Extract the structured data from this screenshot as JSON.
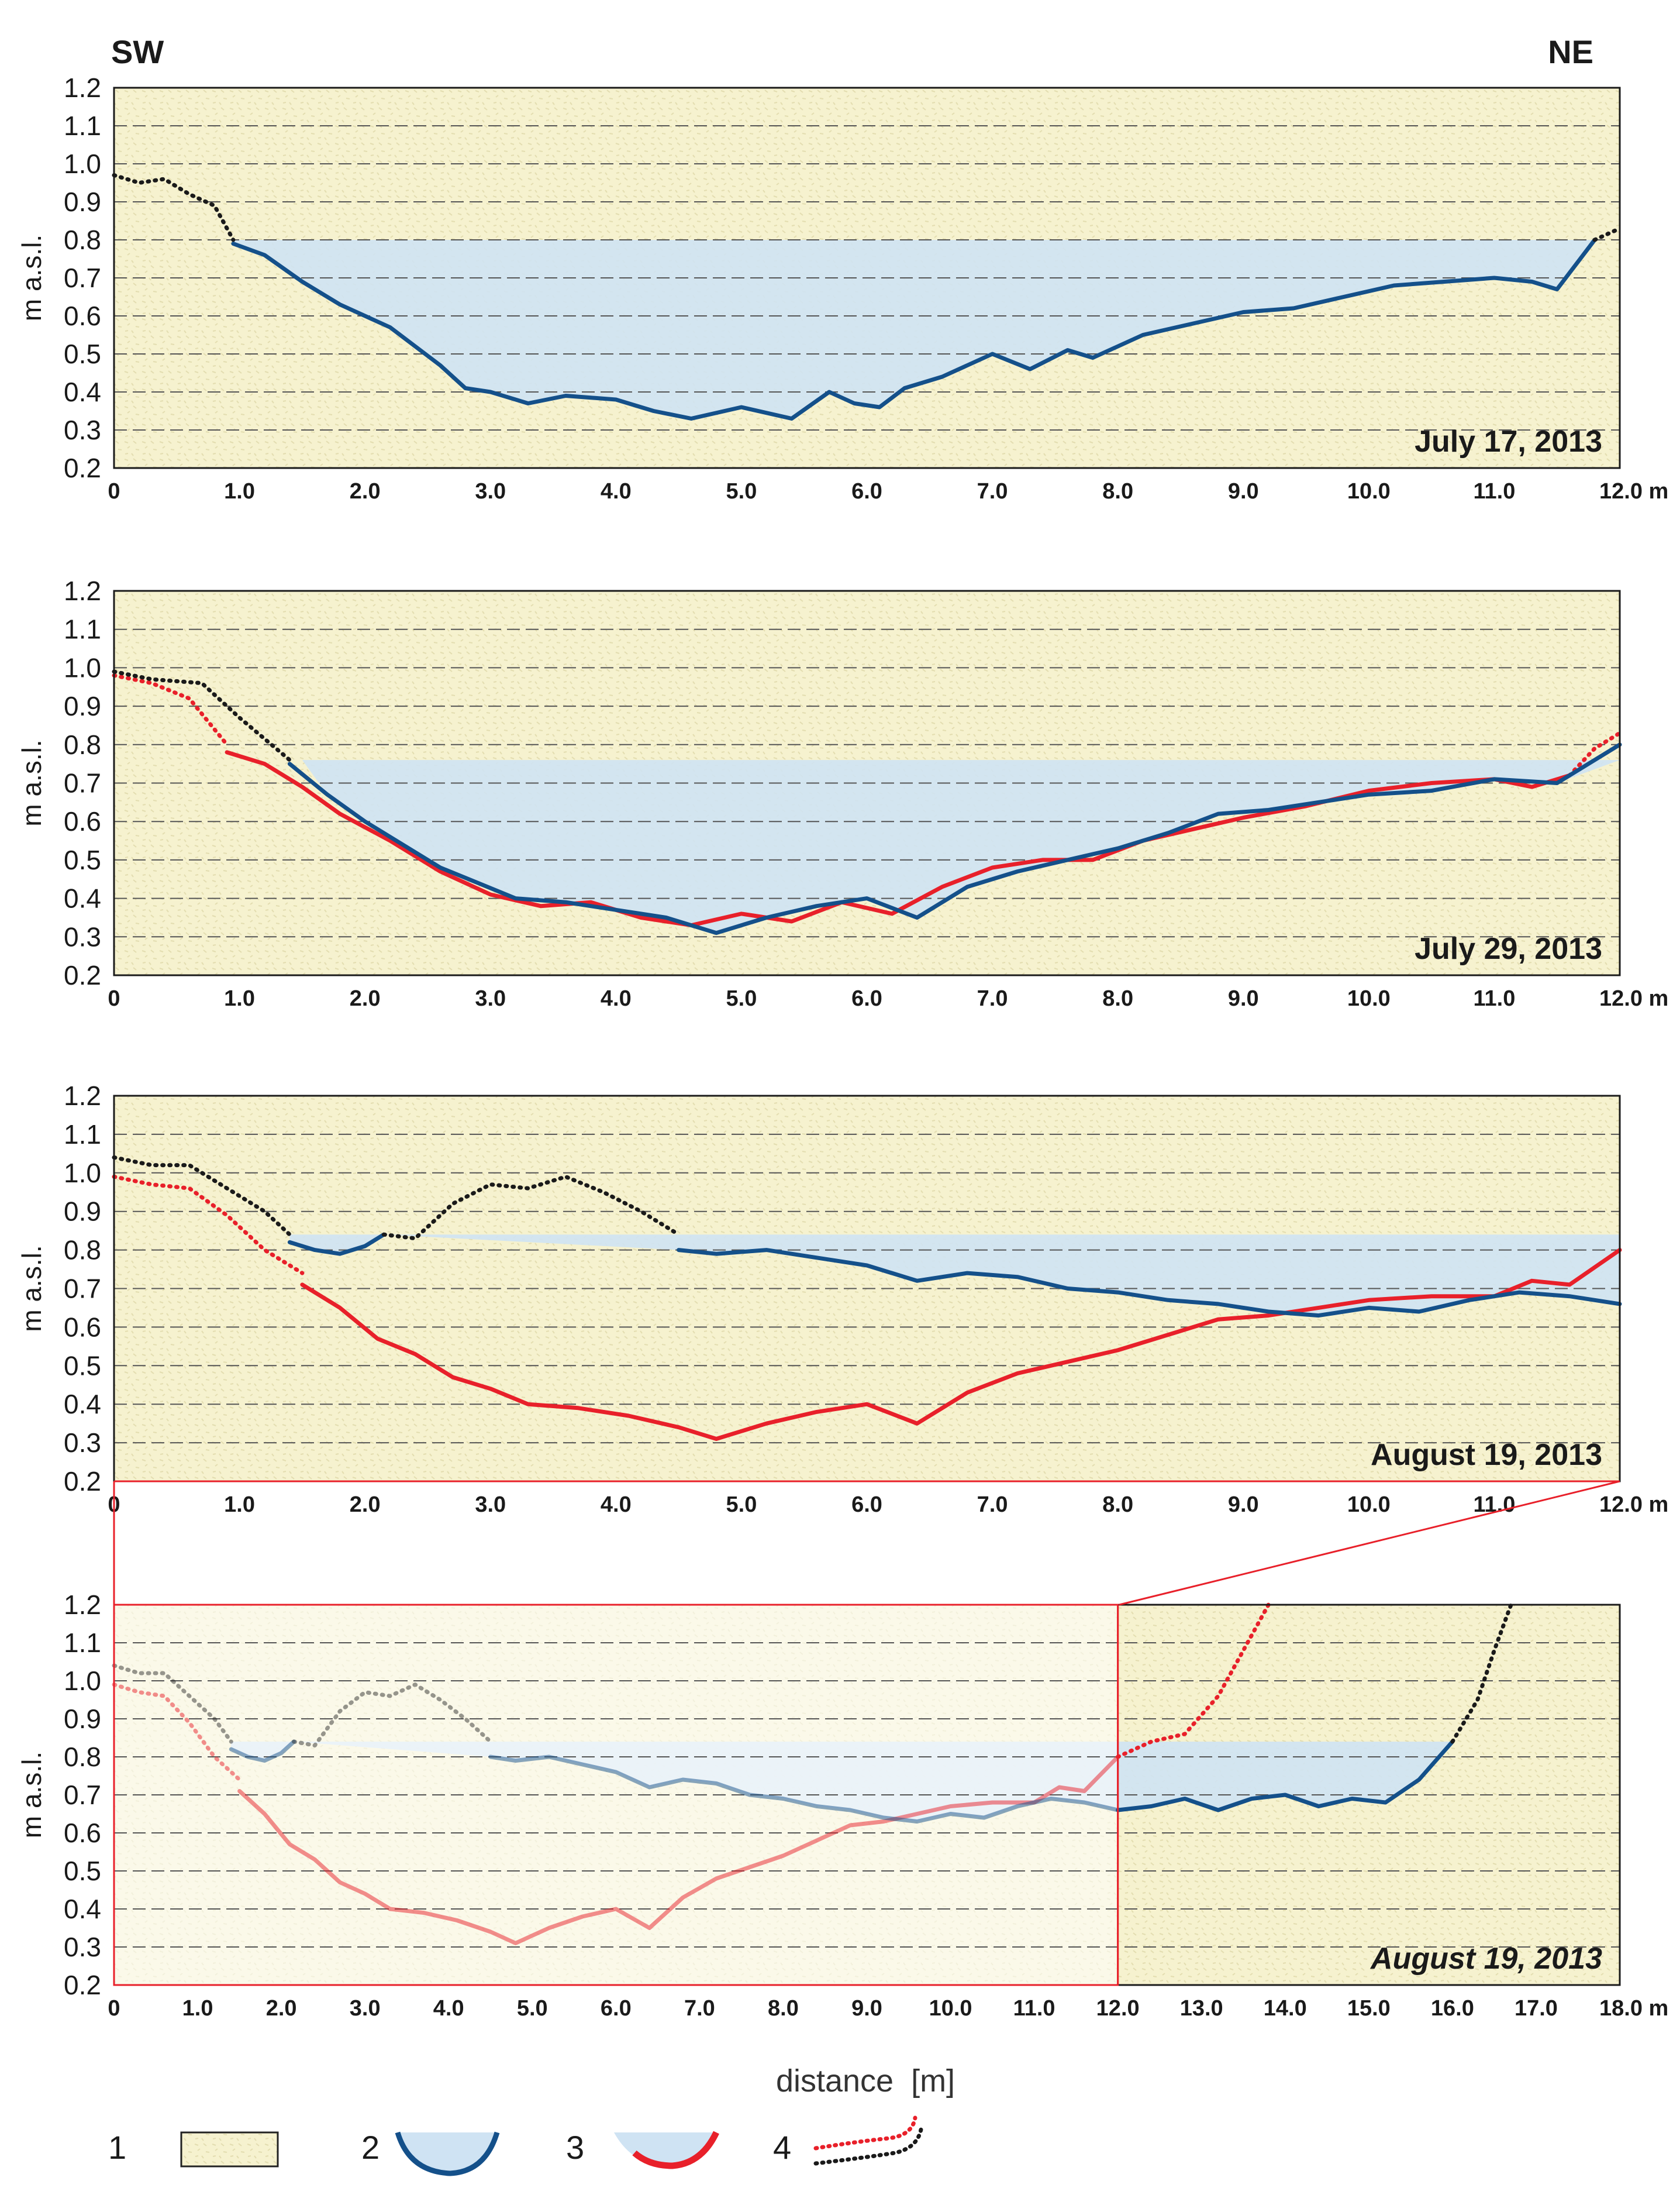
{
  "labels": {
    "left_direction": "SW",
    "right_direction": "NE",
    "xlabel": "distance  [m]"
  },
  "colors": {
    "ground": "#f6f2cf",
    "water": "#cfe3f3",
    "profile_blue": "#14508a",
    "profile_red": "#e8202a",
    "dotted_black": "#1a1a1a",
    "grid": "#555555",
    "zoom_frame": "#e8202a"
  },
  "legend": [
    {
      "num": "1",
      "icon": "ground-swatch"
    },
    {
      "num": "2",
      "icon": "blue-channel-profile"
    },
    {
      "num": "3",
      "icon": "red-channel-profile"
    },
    {
      "num": "4",
      "icon": "dotted-profile-lines"
    }
  ],
  "chart_data": [
    {
      "type": "line",
      "title": "July 17, 2013",
      "ylabel": "m a.s.l.",
      "xlim": [
        0,
        12
      ],
      "ylim": [
        0.2,
        1.2
      ],
      "xticks": [
        "0",
        "1.0",
        "2.0",
        "3.0",
        "4.0",
        "5.0",
        "6.0",
        "7.0",
        "8.0",
        "9.0",
        "10.0",
        "11.0",
        "12.0 m"
      ],
      "yticks": [
        "0.2",
        "0.3",
        "0.4",
        "0.5",
        "0.6",
        "0.7",
        "0.8",
        "0.9",
        "1.0",
        "1.1",
        "1.2"
      ],
      "water_level": 0.8,
      "water_range": [
        0.95,
        11.8
      ],
      "series": [
        {
          "name": "bank (dotted)",
          "style": "dotted-black",
          "x": [
            0,
            0.2,
            0.4,
            0.6,
            0.8,
            0.95
          ],
          "y": [
            0.97,
            0.95,
            0.96,
            0.92,
            0.89,
            0.8
          ]
        },
        {
          "name": "profile",
          "style": "blue",
          "x": [
            0.95,
            1.2,
            1.5,
            1.8,
            2.2,
            2.6,
            2.8,
            3.0,
            3.3,
            3.6,
            4.0,
            4.3,
            4.6,
            5.0,
            5.4,
            5.7,
            5.9,
            6.1,
            6.3,
            6.6,
            7.0,
            7.3,
            7.6,
            7.8,
            8.2,
            8.6,
            9.0,
            9.4,
            9.8,
            10.2,
            10.6,
            11.0,
            11.3,
            11.5,
            11.8
          ],
          "y": [
            0.79,
            0.76,
            0.69,
            0.63,
            0.57,
            0.47,
            0.41,
            0.4,
            0.37,
            0.39,
            0.38,
            0.35,
            0.33,
            0.36,
            0.33,
            0.4,
            0.37,
            0.36,
            0.41,
            0.44,
            0.5,
            0.46,
            0.51,
            0.49,
            0.55,
            0.58,
            0.61,
            0.62,
            0.65,
            0.68,
            0.69,
            0.7,
            0.69,
            0.67,
            0.8
          ]
        },
        {
          "name": "bank (dotted)",
          "style": "dotted-black",
          "x": [
            11.8,
            12.0
          ],
          "y": [
            0.8,
            0.83
          ]
        }
      ]
    },
    {
      "type": "line",
      "title": "July 29, 2013",
      "ylabel": "m a.s.l.",
      "xlim": [
        0,
        12
      ],
      "ylim": [
        0.2,
        1.2
      ],
      "xticks": [
        "0",
        "1.0",
        "2.0",
        "3.0",
        "4.0",
        "5.0",
        "6.0",
        "7.0",
        "8.0",
        "9.0",
        "10.0",
        "11.0",
        "12.0 m"
      ],
      "yticks": [
        "0.2",
        "0.3",
        "0.4",
        "0.5",
        "0.6",
        "0.7",
        "0.8",
        "0.9",
        "1.0",
        "1.1",
        "1.2"
      ],
      "water_level": 0.76,
      "water_range": [
        1.5,
        12.0
      ],
      "series": [
        {
          "name": "red bank (dotted)",
          "style": "dotted-red",
          "x": [
            0,
            0.3,
            0.6,
            0.9
          ],
          "y": [
            0.98,
            0.96,
            0.92,
            0.8
          ]
        },
        {
          "name": "July 17 profile",
          "style": "red",
          "x": [
            0.9,
            1.2,
            1.5,
            1.8,
            2.2,
            2.6,
            3.0,
            3.4,
            3.8,
            4.2,
            4.6,
            5.0,
            5.4,
            5.8,
            6.2,
            6.6,
            7.0,
            7.4,
            7.8,
            8.2,
            8.6,
            9.0,
            9.5,
            10.0,
            10.5,
            11.0,
            11.3,
            11.6
          ],
          "y": [
            0.78,
            0.75,
            0.69,
            0.62,
            0.55,
            0.47,
            0.41,
            0.38,
            0.39,
            0.35,
            0.33,
            0.36,
            0.34,
            0.39,
            0.36,
            0.43,
            0.48,
            0.5,
            0.5,
            0.55,
            0.58,
            0.61,
            0.64,
            0.68,
            0.7,
            0.71,
            0.69,
            0.72
          ]
        },
        {
          "name": "red bank (dotted)",
          "style": "dotted-red",
          "x": [
            11.6,
            11.8,
            12.0
          ],
          "y": [
            0.72,
            0.79,
            0.83
          ]
        },
        {
          "name": "black bank (dotted)",
          "style": "dotted-black",
          "x": [
            0,
            0.3,
            0.7,
            1.0,
            1.4
          ],
          "y": [
            0.99,
            0.97,
            0.96,
            0.87,
            0.76
          ]
        },
        {
          "name": "profile",
          "style": "blue",
          "x": [
            1.4,
            1.7,
            2.0,
            2.3,
            2.6,
            2.9,
            3.2,
            3.6,
            4.0,
            4.4,
            4.8,
            5.2,
            5.6,
            6.0,
            6.4,
            6.8,
            7.2,
            7.6,
            8.0,
            8.4,
            8.8,
            9.2,
            9.6,
            10.0,
            10.5,
            11.0,
            11.5,
            12.0
          ],
          "y": [
            0.75,
            0.67,
            0.6,
            0.54,
            0.48,
            0.44,
            0.4,
            0.39,
            0.37,
            0.35,
            0.31,
            0.35,
            0.38,
            0.4,
            0.35,
            0.43,
            0.47,
            0.5,
            0.53,
            0.57,
            0.62,
            0.63,
            0.65,
            0.67,
            0.68,
            0.71,
            0.7,
            0.8
          ]
        }
      ]
    },
    {
      "type": "line",
      "title": "August 19, 2013",
      "ylabel": "m a.s.l.",
      "xlim": [
        0,
        12
      ],
      "ylim": [
        0.2,
        1.2
      ],
      "xticks": [
        "0",
        "1.0",
        "2.0",
        "3.0",
        "4.0",
        "5.0",
        "6.0",
        "7.0",
        "8.0",
        "9.0",
        "10.0",
        "11.0",
        "12.0 m"
      ],
      "yticks": [
        "0.2",
        "0.3",
        "0.4",
        "0.5",
        "0.6",
        "0.7",
        "0.8",
        "0.9",
        "1.0",
        "1.1",
        "1.2"
      ],
      "water_level": 0.84,
      "water_range": [
        1.4,
        12.0
      ],
      "series": [
        {
          "name": "red bank (dotted)",
          "style": "dotted-red",
          "x": [
            0,
            0.3,
            0.6,
            0.9,
            1.2,
            1.5
          ],
          "y": [
            0.99,
            0.97,
            0.96,
            0.89,
            0.8,
            0.74
          ]
        },
        {
          "name": "July 29 profile",
          "style": "red",
          "x": [
            1.5,
            1.8,
            2.1,
            2.4,
            2.7,
            3.0,
            3.3,
            3.7,
            4.1,
            4.5,
            4.8,
            5.2,
            5.6,
            6.0,
            6.4,
            6.8,
            7.2,
            7.6,
            8.0,
            8.4,
            8.8,
            9.2,
            9.6,
            10.0,
            10.5,
            11.0,
            11.3,
            11.6,
            12.0
          ],
          "y": [
            0.71,
            0.65,
            0.57,
            0.53,
            0.47,
            0.44,
            0.4,
            0.39,
            0.37,
            0.34,
            0.31,
            0.35,
            0.38,
            0.4,
            0.35,
            0.43,
            0.48,
            0.51,
            0.54,
            0.58,
            0.62,
            0.63,
            0.65,
            0.67,
            0.68,
            0.68,
            0.72,
            0.71,
            0.8
          ]
        },
        {
          "name": "black bank (dotted)",
          "style": "dotted-black",
          "x": [
            0,
            0.3,
            0.6,
            0.9,
            1.2,
            1.4
          ],
          "y": [
            1.04,
            1.02,
            1.02,
            0.96,
            0.9,
            0.84
          ]
        },
        {
          "name": "profile left pool",
          "style": "blue",
          "x": [
            1.4,
            1.6,
            1.8,
            2.0,
            2.15
          ],
          "y": [
            0.82,
            0.8,
            0.79,
            0.81,
            0.84
          ]
        },
        {
          "name": "bar (dotted)",
          "style": "dotted-black",
          "x": [
            2.15,
            2.4,
            2.7,
            3.0,
            3.3,
            3.6,
            3.9,
            4.2,
            4.5
          ],
          "y": [
            0.84,
            0.83,
            0.92,
            0.97,
            0.96,
            0.99,
            0.95,
            0.9,
            0.84
          ]
        },
        {
          "name": "profile",
          "style": "blue",
          "x": [
            4.5,
            4.8,
            5.2,
            5.6,
            6.0,
            6.4,
            6.8,
            7.2,
            7.6,
            8.0,
            8.4,
            8.8,
            9.2,
            9.6,
            10.0,
            10.4,
            10.8,
            11.2,
            11.6,
            12.0
          ],
          "y": [
            0.8,
            0.79,
            0.8,
            0.78,
            0.76,
            0.72,
            0.74,
            0.73,
            0.7,
            0.69,
            0.67,
            0.66,
            0.64,
            0.63,
            0.65,
            0.64,
            0.67,
            0.69,
            0.68,
            0.66
          ]
        }
      ]
    },
    {
      "type": "line",
      "title": "August 19, 2013",
      "ylabel": "m a.s.l.",
      "xlim": [
        0,
        18
      ],
      "ylim": [
        0.2,
        1.2
      ],
      "xticks": [
        "0",
        "1.0",
        "2.0",
        "3.0",
        "4.0",
        "5.0",
        "6.0",
        "7.0",
        "8.0",
        "9.0",
        "10.0",
        "11.0",
        "12.0",
        "13.0",
        "14.0",
        "15.0",
        "16.0",
        "17.0",
        "18.0 m"
      ],
      "yticks": [
        "0.2",
        "0.3",
        "0.4",
        "0.5",
        "0.6",
        "0.7",
        "0.8",
        "0.9",
        "1.0",
        "1.1",
        "1.2"
      ],
      "water_level": 0.84,
      "water_range": [
        1.4,
        16.0
      ],
      "highlight_from": 12.0,
      "series": [
        {
          "name": "red bank (dotted)",
          "style": "dotted-red-faded",
          "x": [
            0,
            0.3,
            0.6,
            0.9,
            1.2,
            1.5
          ],
          "y": [
            0.99,
            0.97,
            0.96,
            0.89,
            0.8,
            0.74
          ]
        },
        {
          "name": "July 29 profile",
          "style": "red-faded",
          "x": [
            1.5,
            1.8,
            2.1,
            2.4,
            2.7,
            3.0,
            3.3,
            3.7,
            4.1,
            4.5,
            4.8,
            5.2,
            5.6,
            6.0,
            6.4,
            6.8,
            7.2,
            7.6,
            8.0,
            8.4,
            8.8,
            9.2,
            9.6,
            10.0,
            10.5,
            11.0,
            11.3,
            11.6,
            12.0
          ],
          "y": [
            0.71,
            0.65,
            0.57,
            0.53,
            0.47,
            0.44,
            0.4,
            0.39,
            0.37,
            0.34,
            0.31,
            0.35,
            0.38,
            0.4,
            0.35,
            0.43,
            0.48,
            0.51,
            0.54,
            0.58,
            0.62,
            0.63,
            0.65,
            0.67,
            0.68,
            0.68,
            0.72,
            0.71,
            0.8
          ]
        },
        {
          "name": "red bank (dotted)",
          "style": "dotted-red",
          "x": [
            12.0,
            12.4,
            12.8,
            13.2,
            13.5,
            13.8
          ],
          "y": [
            0.8,
            0.84,
            0.86,
            0.96,
            1.08,
            1.2
          ]
        },
        {
          "name": "black bank (dotted)",
          "style": "dotted-black-faded",
          "x": [
            0,
            0.3,
            0.6,
            0.9,
            1.2,
            1.4
          ],
          "y": [
            1.04,
            1.02,
            1.02,
            0.96,
            0.9,
            0.84
          ]
        },
        {
          "name": "profile left pool",
          "style": "blue-faded",
          "x": [
            1.4,
            1.6,
            1.8,
            2.0,
            2.15
          ],
          "y": [
            0.82,
            0.8,
            0.79,
            0.81,
            0.84
          ]
        },
        {
          "name": "bar (dotted)",
          "style": "dotted-black-faded",
          "x": [
            2.15,
            2.4,
            2.7,
            3.0,
            3.3,
            3.6,
            3.9,
            4.2,
            4.5
          ],
          "y": [
            0.84,
            0.83,
            0.92,
            0.97,
            0.96,
            0.99,
            0.95,
            0.9,
            0.84
          ]
        },
        {
          "name": "profile",
          "style": "blue-faded",
          "x": [
            4.5,
            4.8,
            5.2,
            5.6,
            6.0,
            6.4,
            6.8,
            7.2,
            7.6,
            8.0,
            8.4,
            8.8,
            9.2,
            9.6,
            10.0,
            10.4,
            10.8,
            11.2,
            11.6,
            12.0
          ],
          "y": [
            0.8,
            0.79,
            0.8,
            0.78,
            0.76,
            0.72,
            0.74,
            0.73,
            0.7,
            0.69,
            0.67,
            0.66,
            0.64,
            0.63,
            0.65,
            0.64,
            0.67,
            0.69,
            0.68,
            0.66
          ]
        },
        {
          "name": "profile extension",
          "style": "blue",
          "x": [
            12.0,
            12.4,
            12.8,
            13.2,
            13.6,
            14.0,
            14.4,
            14.8,
            15.2,
            15.6,
            16.0
          ],
          "y": [
            0.66,
            0.67,
            0.69,
            0.66,
            0.69,
            0.7,
            0.67,
            0.69,
            0.68,
            0.74,
            0.84
          ]
        },
        {
          "name": "bank (dotted)",
          "style": "dotted-black",
          "x": [
            16.0,
            16.3,
            16.5,
            16.7
          ],
          "y": [
            0.84,
            0.95,
            1.08,
            1.2
          ]
        }
      ]
    }
  ]
}
